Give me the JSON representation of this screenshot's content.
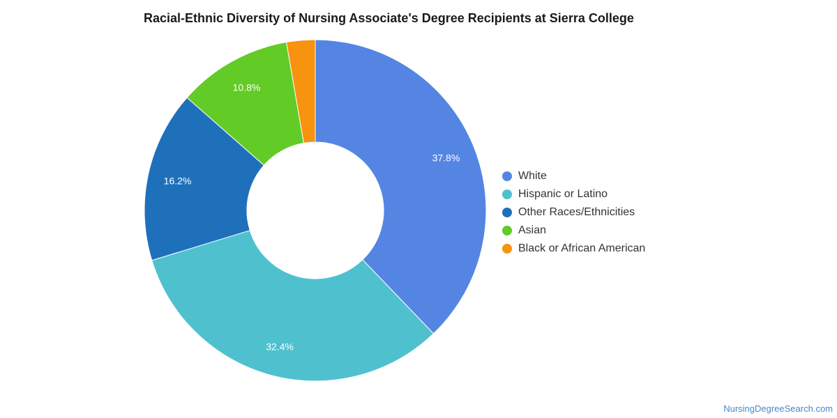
{
  "chart_data": {
    "type": "pie",
    "title": "Racial-Ethnic Diversity of Nursing Associate's Degree Recipients at Sierra College",
    "donut": true,
    "categories": [
      "White",
      "Hispanic or Latino",
      "Other Races/Ethnicities",
      "Asian",
      "Black or African American"
    ],
    "values": [
      37.8,
      32.4,
      16.2,
      10.8,
      2.7
    ],
    "data_labels": [
      "37.8%",
      "32.4%",
      "16.2%",
      "10.8%",
      ""
    ],
    "colors": [
      "#5585e3",
      "#4fc1ce",
      "#1f70bb",
      "#62cb26",
      "#f7930e"
    ],
    "legend_position": "right"
  },
  "credit": "NursingDegreeSearch.com"
}
